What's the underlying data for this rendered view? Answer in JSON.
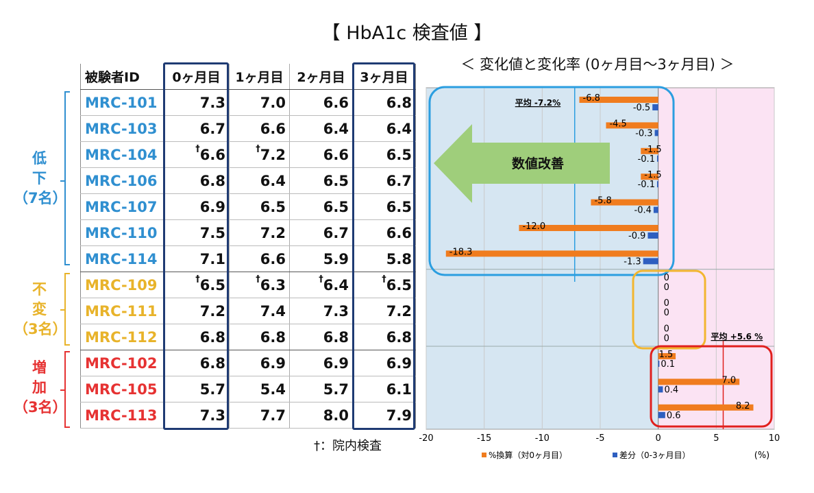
{
  "title": "【 HbA1c 検査値 】",
  "table": {
    "headers": [
      "被験者ID",
      "0ヶ月目",
      "1ヶ月目",
      "2ヶ月目",
      "3ヶ月目"
    ],
    "rows": [
      {
        "id": "MRC-101",
        "m0": "7.3",
        "m1": "7.0",
        "m2": "6.6",
        "m3": "6.8"
      },
      {
        "id": "MRC-103",
        "m0": "6.7",
        "m1": "6.6",
        "m2": "6.4",
        "m3": "6.4"
      },
      {
        "id": "MRC-104",
        "m0": "6.6",
        "m1": "7.2",
        "m2": "6.6",
        "m3": "6.5"
      },
      {
        "id": "MRC-106",
        "m0": "6.8",
        "m1": "6.4",
        "m2": "6.5",
        "m3": "6.7"
      },
      {
        "id": "MRC-107",
        "m0": "6.9",
        "m1": "6.5",
        "m2": "6.5",
        "m3": "6.5"
      },
      {
        "id": "MRC-110",
        "m0": "7.5",
        "m1": "7.2",
        "m2": "6.7",
        "m3": "6.6"
      },
      {
        "id": "MRC-114",
        "m0": "7.1",
        "m1": "6.6",
        "m2": "5.9",
        "m3": "5.8"
      },
      {
        "id": "MRC-109",
        "m0": "6.5",
        "m1": "6.3",
        "m2": "6.4",
        "m3": "6.5"
      },
      {
        "id": "MRC-111",
        "m0": "7.2",
        "m1": "7.4",
        "m2": "7.3",
        "m3": "7.2"
      },
      {
        "id": "MRC-112",
        "m0": "6.8",
        "m1": "6.8",
        "m2": "6.8",
        "m3": "6.8"
      },
      {
        "id": "MRC-102",
        "m0": "6.8",
        "m1": "6.9",
        "m2": "6.9",
        "m3": "6.9"
      },
      {
        "id": "MRC-105",
        "m0": "5.7",
        "m1": "5.4",
        "m2": "5.7",
        "m3": "6.1"
      },
      {
        "id": "MRC-113",
        "m0": "7.3",
        "m1": "7.7",
        "m2": "8.0",
        "m3": "7.9"
      }
    ],
    "dagger_mark": "†"
  },
  "groups": {
    "low": {
      "label1": "低",
      "label2": "下",
      "label3": "（7名）",
      "color": "#2f8fd0"
    },
    "same": {
      "label1": "不",
      "label2": "変",
      "label3": "（3名）",
      "color": "#e8b32a"
    },
    "up": {
      "label1": "増",
      "label2": "加",
      "label3": "（3名）",
      "color": "#e63232"
    }
  },
  "footnote": "†：院内検査",
  "chart_data": {
    "type": "bar",
    "orientation": "horizontal",
    "title": "＜ 変化値と変化率 (0ヶ月目～3ヶ月目) ＞",
    "categories": [
      "MRC-101",
      "MRC-103",
      "MRC-104",
      "MRC-106",
      "MRC-107",
      "MRC-110",
      "MRC-114",
      "MRC-109",
      "MRC-111",
      "MRC-112",
      "MRC-102",
      "MRC-105",
      "MRC-113"
    ],
    "series": [
      {
        "name": "%換算（対0ヶ月目）",
        "color": "#f07c1e",
        "values": [
          -6.8,
          -4.5,
          -1.5,
          -1.5,
          -5.8,
          -12.0,
          -18.3,
          0,
          0,
          0,
          1.5,
          7.0,
          8.2
        ],
        "labels": [
          "-6.8",
          "-4.5",
          "-1.5",
          "-1.5",
          "-5.8",
          "-12.0",
          "-18.3",
          "0",
          "0",
          "0",
          "1.5",
          "7.0",
          "8.2"
        ]
      },
      {
        "name": "差分（0-3ヶ月目）",
        "color": "#2e5fc0",
        "values": [
          -0.5,
          -0.3,
          -0.1,
          -0.1,
          -0.4,
          -0.9,
          -1.3,
          0,
          0,
          0,
          0.1,
          0.4,
          0.6
        ],
        "labels": [
          "-0.5",
          "-0.3",
          "-0.1",
          "-0.1",
          "-0.4",
          "-0.9",
          "-1.3",
          "0",
          "0",
          "0",
          "0.1",
          "0.4",
          "0.6"
        ]
      }
    ],
    "xlim": [
      -20,
      10
    ],
    "xticks": [
      -20,
      -15,
      -10,
      -5,
      0,
      5,
      10
    ],
    "xticklabels": [
      "-20",
      "-15",
      "-10",
      "-5",
      "0",
      "5",
      "10"
    ],
    "xunit": "(%)",
    "annotations": {
      "avg_decrease": {
        "label": "平均 -7.2%",
        "value": -7.2
      },
      "avg_increase": {
        "label": "平均 +5.6 %",
        "value": 5.6
      },
      "arrow_text": "数値改善"
    },
    "colors": {
      "decrease_bg": "#d6e6f2",
      "increase_bg": "#fbe3f3",
      "low_box": "#2b9ee0",
      "same_box": "#f2b630",
      "up_box": "#e0201e",
      "arrow": "#9fce7b"
    }
  }
}
